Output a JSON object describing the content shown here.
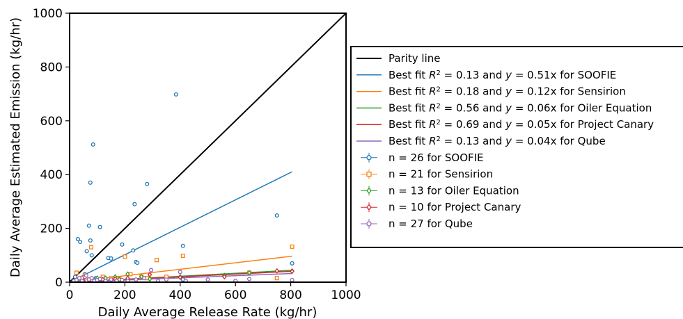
{
  "chart_data": {
    "type": "scatter",
    "title": "",
    "xlabel": "Daily Average Release Rate (kg/hr)",
    "ylabel": "Daily Average Estimated Emission (kg/hr)",
    "xlim": [
      0,
      1000
    ],
    "ylim": [
      0,
      1000
    ],
    "x_ticks": [
      0,
      200,
      400,
      600,
      800,
      1000
    ],
    "y_ticks": [
      0,
      200,
      400,
      600,
      800,
      1000
    ],
    "grid": false,
    "legend_position": "right",
    "lines": [
      {
        "key": "parity",
        "label_pre": "Parity line",
        "label_post": "",
        "slope": 1.0,
        "x_range": [
          0,
          1000
        ],
        "color": "#000000"
      },
      {
        "key": "fit-soofie",
        "label_pre": "Best fit R² = 0.13 and y = 0.51x",
        "label_post": " for SOOFIE",
        "slope": 0.51,
        "x_range": [
          0,
          805
        ],
        "color": "#1f77b4"
      },
      {
        "key": "fit-sensirion",
        "label_pre": "Best fit R² = 0.18 and y = 0.12x",
        "label_post": " for Sensirion",
        "slope": 0.12,
        "x_range": [
          0,
          805
        ],
        "color": "#ff7f0e"
      },
      {
        "key": "fit-oiler",
        "label_pre": "Best fit R² = 0.56 and y = 0.06x",
        "label_post": " for Oiler Equation",
        "slope": 0.055,
        "x_range": [
          0,
          805
        ],
        "color": "#2ca02c"
      },
      {
        "key": "fit-canary",
        "label_pre": "Best fit R² = 0.69 and y = 0.05x",
        "label_post": " for Project Canary",
        "slope": 0.05,
        "x_range": [
          0,
          805
        ],
        "color": "#d62728"
      },
      {
        "key": "fit-qube",
        "label_pre": "Best fit R² = 0.13 and y = 0.04x",
        "label_post": " for Qube",
        "slope": 0.04,
        "x_range": [
          0,
          805
        ],
        "color": "#9467bd"
      }
    ],
    "series": [
      {
        "name": "n = 26 for SOOFIE",
        "marker": "circle",
        "color": "#1f77b4",
        "points": [
          [
            20,
            20
          ],
          [
            30,
            160
          ],
          [
            38,
            150
          ],
          [
            45,
            10
          ],
          [
            55,
            30
          ],
          [
            62,
            115
          ],
          [
            70,
            210
          ],
          [
            75,
            155
          ],
          [
            75,
            370
          ],
          [
            80,
            100
          ],
          [
            85,
            512
          ],
          [
            95,
            15
          ],
          [
            110,
            205
          ],
          [
            140,
            90
          ],
          [
            150,
            88
          ],
          [
            190,
            140
          ],
          [
            230,
            118
          ],
          [
            235,
            290
          ],
          [
            240,
            75
          ],
          [
            245,
            72
          ],
          [
            280,
            365
          ],
          [
            385,
            698
          ],
          [
            410,
            135
          ],
          [
            750,
            248
          ],
          [
            805,
            70
          ],
          [
            410,
            10
          ]
        ]
      },
      {
        "name": "n = 21 for Sensirion",
        "marker": "square",
        "color": "#ff7f0e",
        "points": [
          [
            25,
            35
          ],
          [
            45,
            15
          ],
          [
            55,
            25
          ],
          [
            70,
            10
          ],
          [
            78,
            130
          ],
          [
            90,
            5
          ],
          [
            120,
            20
          ],
          [
            150,
            15
          ],
          [
            200,
            95
          ],
          [
            220,
            30
          ],
          [
            280,
            15
          ],
          [
            315,
            82
          ],
          [
            410,
            98
          ],
          [
            650,
            35
          ],
          [
            750,
            15
          ],
          [
            805,
            132
          ],
          [
            60,
            5
          ],
          [
            100,
            10
          ],
          [
            180,
            12
          ],
          [
            260,
            20
          ],
          [
            350,
            20
          ]
        ]
      },
      {
        "name": "n = 13 for Oiler Equation",
        "marker": "diamond",
        "color": "#2ca02c",
        "points": [
          [
            40,
            5
          ],
          [
            70,
            8
          ],
          [
            100,
            15
          ],
          [
            130,
            15
          ],
          [
            165,
            20
          ],
          [
            210,
            30
          ],
          [
            260,
            20
          ],
          [
            290,
            12
          ],
          [
            400,
            20
          ],
          [
            560,
            25
          ],
          [
            650,
            35
          ],
          [
            805,
            42
          ],
          [
            180,
            10
          ]
        ]
      },
      {
        "name": "n = 10 for Project Canary",
        "marker": "diamond",
        "color": "#d62728",
        "points": [
          [
            50,
            5
          ],
          [
            80,
            8
          ],
          [
            120,
            10
          ],
          [
            165,
            12
          ],
          [
            210,
            15
          ],
          [
            290,
            28
          ],
          [
            400,
            18
          ],
          [
            560,
            20
          ],
          [
            750,
            42
          ],
          [
            805,
            40
          ]
        ]
      },
      {
        "name": "n = 27 for Qube",
        "marker": "circle",
        "color": "#9467bd",
        "points": [
          [
            15,
            5
          ],
          [
            25,
            8
          ],
          [
            35,
            15
          ],
          [
            45,
            5
          ],
          [
            55,
            20
          ],
          [
            60,
            25
          ],
          [
            70,
            10
          ],
          [
            80,
            15
          ],
          [
            90,
            5
          ],
          [
            100,
            8
          ],
          [
            110,
            12
          ],
          [
            130,
            5
          ],
          [
            150,
            10
          ],
          [
            170,
            5
          ],
          [
            190,
            8
          ],
          [
            210,
            5
          ],
          [
            240,
            10
          ],
          [
            270,
            15
          ],
          [
            295,
            45
          ],
          [
            320,
            5
          ],
          [
            350,
            10
          ],
          [
            400,
            38
          ],
          [
            420,
            5
          ],
          [
            500,
            10
          ],
          [
            650,
            12
          ],
          [
            805,
            8
          ],
          [
            600,
            5
          ]
        ]
      }
    ]
  }
}
